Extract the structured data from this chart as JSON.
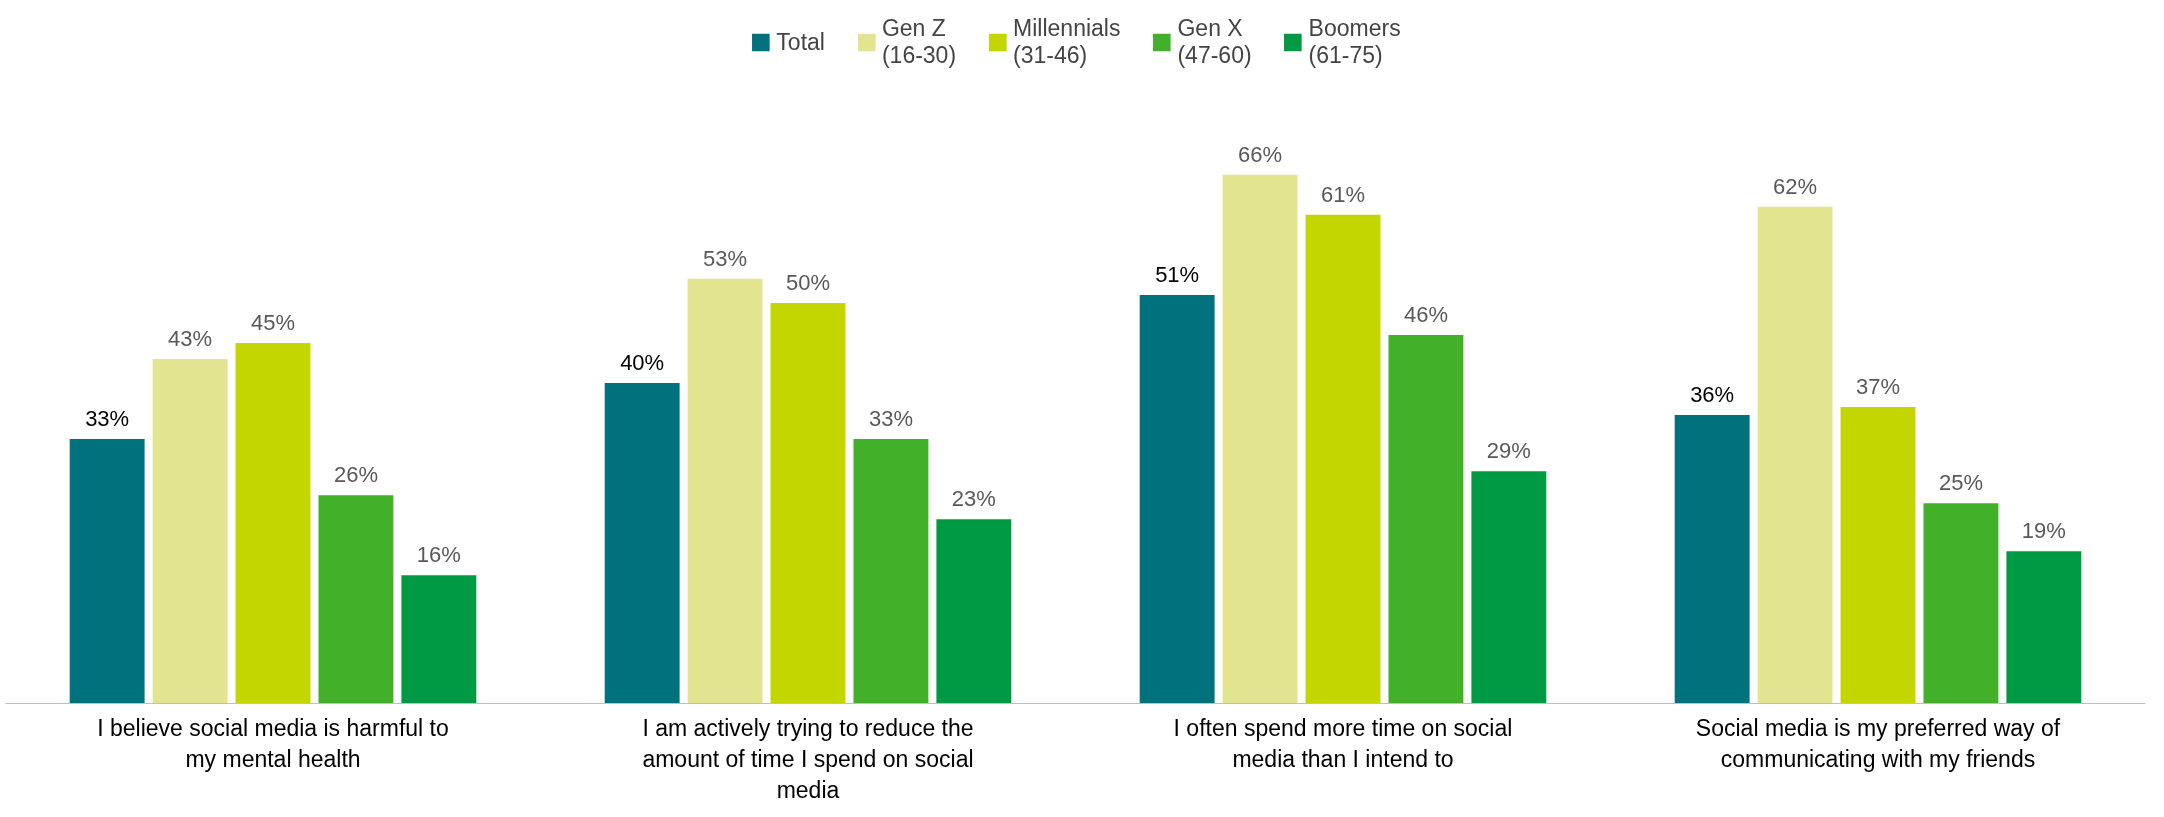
{
  "chart_data": {
    "type": "bar",
    "categories": [
      "I believe social media is harmful to my mental health",
      "I am actively trying to reduce the amount of time I spend on social media",
      "I often spend more time on social media than I intend to",
      "Social media is my preferred way of communicating with my friends"
    ],
    "series": [
      {
        "name": "Total",
        "color": "#00727d",
        "values": [
          33,
          40,
          51,
          36
        ],
        "value_labels": [
          "33%",
          "40%",
          "51%",
          "36%"
        ]
      },
      {
        "name": "Gen Z\n(16-30)",
        "color": "#e3e48f",
        "values": [
          43,
          53,
          66,
          62
        ],
        "value_labels": [
          "43%",
          "53%",
          "66%",
          "62%"
        ]
      },
      {
        "name": "Millennials\n(31-46)",
        "color": "#c4d600",
        "values": [
          45,
          50,
          61,
          37
        ],
        "value_labels": [
          "45%",
          "50%",
          "61%",
          "37%"
        ]
      },
      {
        "name": "Gen X\n(47-60)",
        "color": "#43b02a",
        "values": [
          26,
          33,
          46,
          25
        ],
        "value_labels": [
          "26%",
          "33%",
          "46%",
          "25%"
        ]
      },
      {
        "name": "Boomers\n(61-75)",
        "color": "#009a44",
        "values": [
          16,
          23,
          29,
          19
        ],
        "value_labels": [
          "16%",
          "23%",
          "29%",
          "19%"
        ]
      }
    ],
    "legend": "top",
    "grid": false
  }
}
